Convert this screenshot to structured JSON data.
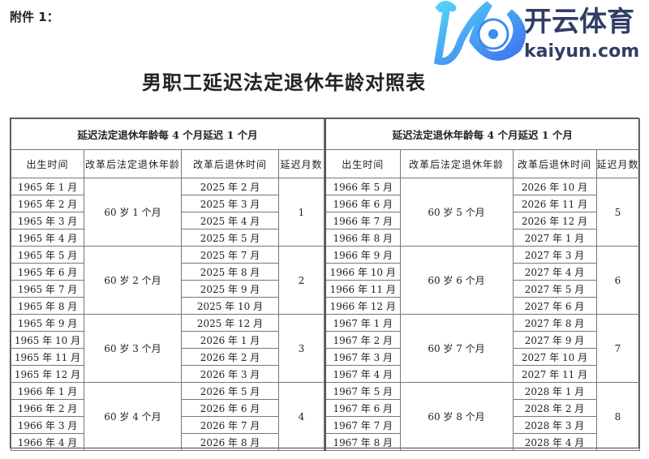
{
  "attachment_label": "附件 1：",
  "title": "男职工延迟法定退休年龄对照表",
  "section_header": "延迟法定退休年龄每 4 个月延迟 1 个月",
  "columns": [
    "出生时间",
    "改革后法定退休年龄",
    "改革后退休时间",
    "延迟月数"
  ],
  "left_groups": [
    {
      "age": "60 岁 1 个月",
      "delay": "1",
      "rows": [
        [
          "1965 年 1 月",
          "2025 年 2 月"
        ],
        [
          "1965 年 2 月",
          "2025 年 3 月"
        ],
        [
          "1965 年 3 月",
          "2025 年 4 月"
        ],
        [
          "1965 年 4 月",
          "2025 年 5 月"
        ]
      ]
    },
    {
      "age": "60 岁 2 个月",
      "delay": "2",
      "rows": [
        [
          "1965 年 5 月",
          "2025 年 7 月"
        ],
        [
          "1965 年 6 月",
          "2025 年 8 月"
        ],
        [
          "1965 年 7 月",
          "2025 年 9 月"
        ],
        [
          "1965 年 8 月",
          "2025 年 10 月"
        ]
      ]
    },
    {
      "age": "60 岁 3 个月",
      "delay": "3",
      "rows": [
        [
          "1965 年 9 月",
          "2025 年 12 月"
        ],
        [
          "1965 年 10 月",
          "2026 年 1 月"
        ],
        [
          "1965 年 11 月",
          "2026 年 2 月"
        ],
        [
          "1965 年 12 月",
          "2026 年 3 月"
        ]
      ]
    },
    {
      "age": "60 岁 4 个月",
      "delay": "4",
      "rows": [
        [
          "1966 年 1 月",
          "2026 年 5 月"
        ],
        [
          "1966 年 2 月",
          "2026 年 6 月"
        ],
        [
          "1966 年 3 月",
          "2026 年 7 月"
        ],
        [
          "1966 年 4 月",
          "2026 年 8 月"
        ]
      ]
    }
  ],
  "right_groups": [
    {
      "age": "60 岁 5 个月",
      "delay": "5",
      "rows": [
        [
          "1966 年 5 月",
          "2026 年 10 月"
        ],
        [
          "1966 年 6 月",
          "2026 年 11 月"
        ],
        [
          "1966 年 7 月",
          "2026 年 12 月"
        ],
        [
          "1966 年 8 月",
          "2027 年 1 月"
        ]
      ]
    },
    {
      "age": "60 岁 6 个月",
      "delay": "6",
      "rows": [
        [
          "1966 年 9 月",
          "2027 年 3 月"
        ],
        [
          "1966 年 10 月",
          "2027 年 4 月"
        ],
        [
          "1966 年 11 月",
          "2027 年 5 月"
        ],
        [
          "1966 年 12 月",
          "2027 年 6 月"
        ]
      ]
    },
    {
      "age": "60 岁 7 个月",
      "delay": "7",
      "rows": [
        [
          "1967 年 1 月",
          "2027 年 8 月"
        ],
        [
          "1967 年 2 月",
          "2027 年 9 月"
        ],
        [
          "1967 年 3 月",
          "2027 年 10 月"
        ],
        [
          "1967 年 4 月",
          "2027 年 11 月"
        ]
      ]
    },
    {
      "age": "60 岁 8 个月",
      "delay": "8",
      "rows": [
        [
          "1967 年 5 月",
          "2028 年 1 月"
        ],
        [
          "1967 年 6 月",
          "2028 年 2 月"
        ],
        [
          "1967 年 7 月",
          "2028 年 3 月"
        ],
        [
          "1967 年 8 月",
          "2028 年 4 月"
        ]
      ]
    }
  ],
  "watermark": {
    "logo_text": "开云体育",
    "logo_url_text": "kaiyun.com",
    "colors": {
      "primary": "#1a2a55",
      "accent": "#2a8cf0"
    }
  }
}
